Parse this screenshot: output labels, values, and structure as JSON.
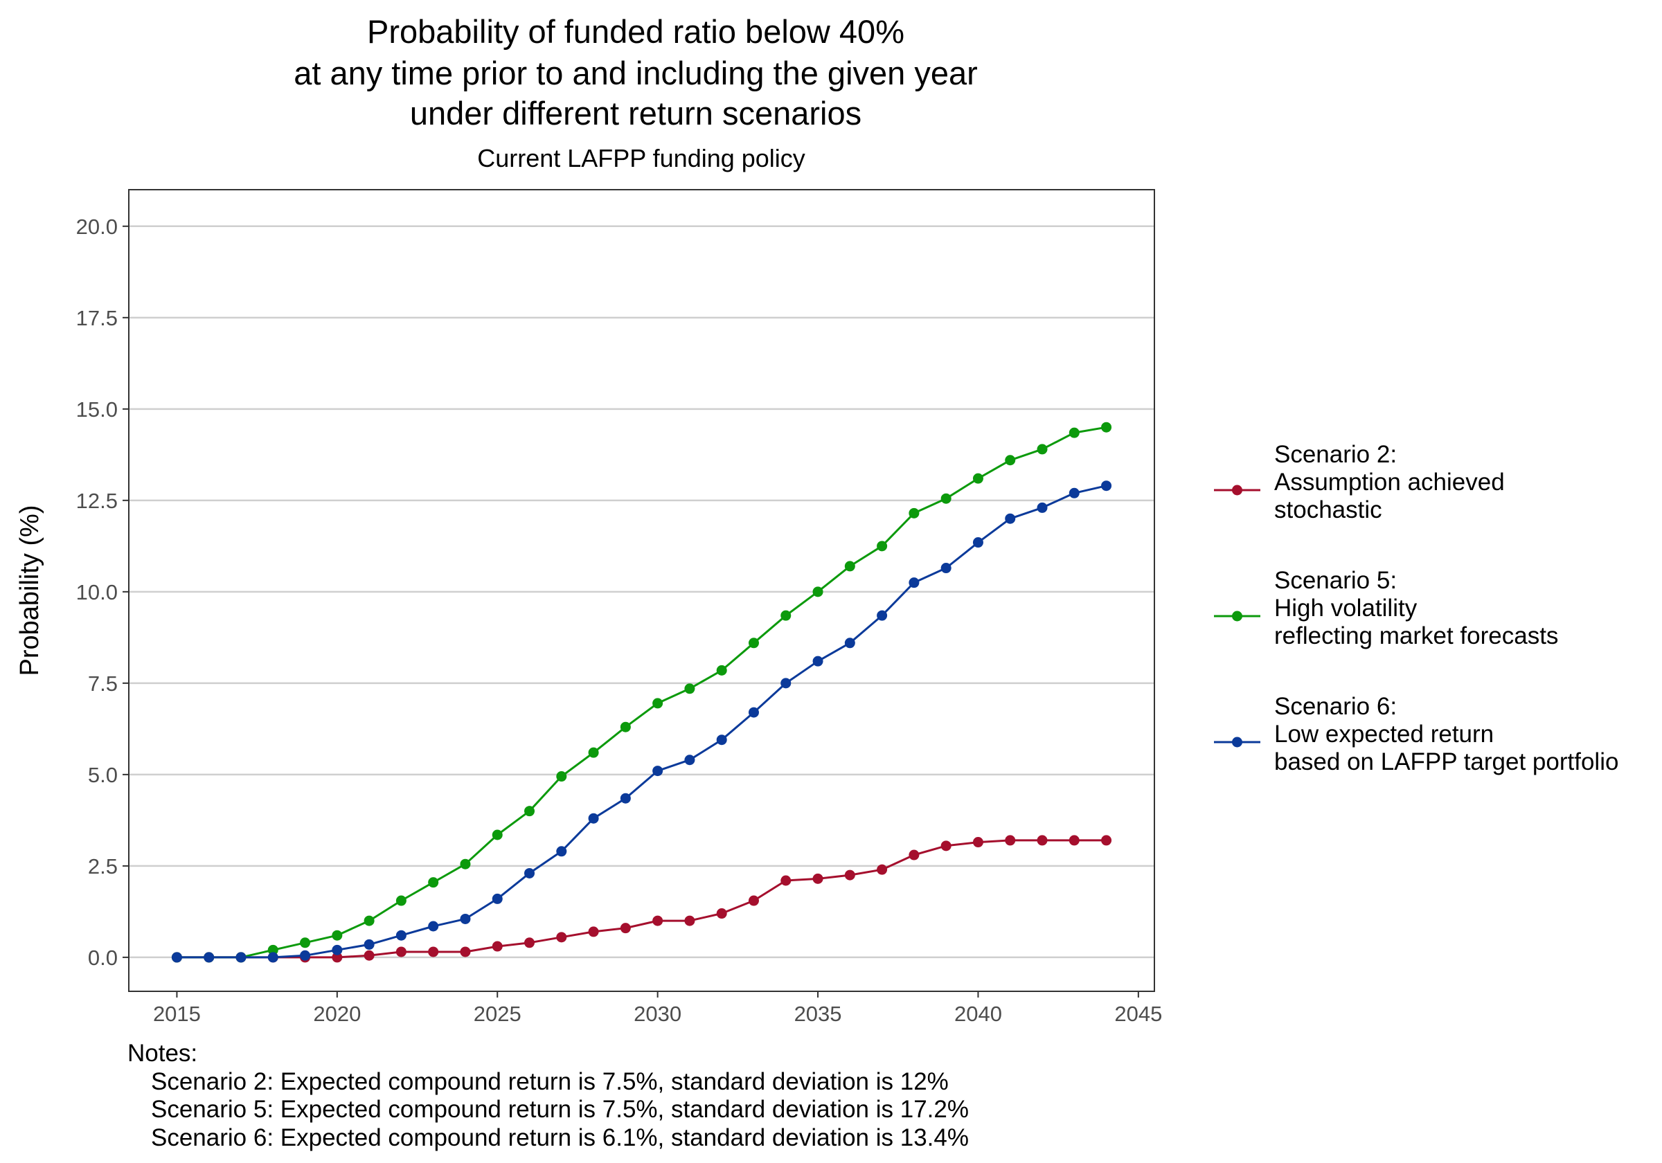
{
  "chart_data": {
    "type": "line",
    "title": [
      "Probability of funded ratio below 40%",
      "at any time prior to and including the given year",
      "under different return scenarios"
    ],
    "subtitle": "Current LAFPP funding policy",
    "xlabel": "",
    "ylabel": "Probability (%)",
    "xlim": [
      2013.5,
      2045.5
    ],
    "ylim": [
      -0.93,
      21.0
    ],
    "x_ticks": [
      2015,
      2020,
      2025,
      2030,
      2035,
      2040,
      2045
    ],
    "x_tick_labels": [
      "2015",
      "2020",
      "2025",
      "2030",
      "2035",
      "2040",
      "2045"
    ],
    "y_ticks": [
      0,
      2.5,
      5,
      7.5,
      10,
      12.5,
      15,
      17.5,
      20
    ],
    "y_tick_labels": [
      "0.0",
      "2.5",
      "5.0",
      "7.5",
      "10.0",
      "12.5",
      "15.0",
      "17.5",
      "20.0"
    ],
    "grid": "horizontal major",
    "legend_position": "right",
    "x": [
      2015,
      2016,
      2017,
      2018,
      2019,
      2020,
      2021,
      2022,
      2023,
      2024,
      2025,
      2026,
      2027,
      2028,
      2029,
      2030,
      2031,
      2032,
      2033,
      2034,
      2035,
      2036,
      2037,
      2038,
      2039,
      2040,
      2041,
      2042,
      2043,
      2044
    ],
    "series": [
      {
        "name": [
          "Scenario 2:",
          "Assumption achieved",
          "stochastic"
        ],
        "color": "#a50f2d",
        "values": [
          0,
          0,
          0,
          0,
          0,
          0,
          0.05,
          0.15,
          0.15,
          0.15,
          0.3,
          0.4,
          0.55,
          0.7,
          0.8,
          1.0,
          1.0,
          1.2,
          1.55,
          2.1,
          2.15,
          2.25,
          2.4,
          2.8,
          3.05,
          3.15,
          3.2,
          3.2,
          3.2,
          3.2
        ]
      },
      {
        "name": [
          "Scenario 5:",
          "High volatility",
          "reflecting market forecasts"
        ],
        "color": "#0c9a0c",
        "values": [
          0,
          0,
          0,
          0.2,
          0.4,
          0.6,
          1.0,
          1.55,
          2.05,
          2.55,
          3.35,
          4.0,
          4.95,
          5.6,
          6.3,
          6.95,
          7.35,
          7.85,
          8.6,
          9.35,
          10.0,
          10.7,
          11.25,
          12.15,
          12.55,
          13.1,
          13.6,
          13.9,
          14.35,
          14.5
        ]
      },
      {
        "name": [
          "Scenario 6:",
          "Low expected return",
          "based on LAFPP target portfolio"
        ],
        "color": "#0b3a9a",
        "values": [
          0,
          0,
          0,
          0,
          0.05,
          0.2,
          0.35,
          0.6,
          0.85,
          1.05,
          1.6,
          2.3,
          2.9,
          3.8,
          4.35,
          5.1,
          5.4,
          5.95,
          6.7,
          7.5,
          8.1,
          8.6,
          9.35,
          10.25,
          10.65,
          11.35,
          12.0,
          12.3,
          12.7,
          12.9
        ]
      }
    ],
    "notes": [
      "Notes:",
      "Scenario 2: Expected compound return is 7.5%, standard deviation is 12%",
      "Scenario 5: Expected compound return is 7.5%, standard deviation is 17.2%",
      "Scenario 6: Expected compound return is 6.1%, standard deviation is 13.4%"
    ]
  }
}
